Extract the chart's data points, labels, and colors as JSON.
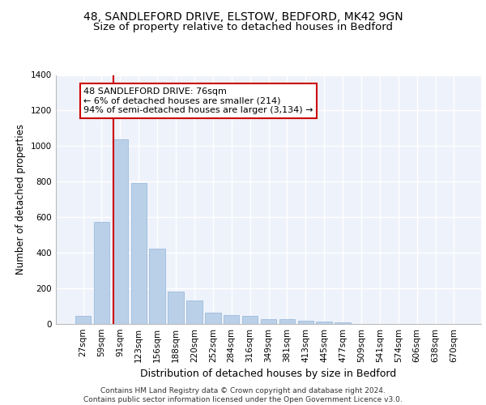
{
  "title1": "48, SANDLEFORD DRIVE, ELSTOW, BEDFORD, MK42 9GN",
  "title2": "Size of property relative to detached houses in Bedford",
  "xlabel": "Distribution of detached houses by size in Bedford",
  "ylabel": "Number of detached properties",
  "categories": [
    "27sqm",
    "59sqm",
    "91sqm",
    "123sqm",
    "156sqm",
    "188sqm",
    "220sqm",
    "252sqm",
    "284sqm",
    "316sqm",
    "349sqm",
    "381sqm",
    "413sqm",
    "445sqm",
    "477sqm",
    "509sqm",
    "541sqm",
    "574sqm",
    "606sqm",
    "638sqm",
    "670sqm"
  ],
  "values": [
    45,
    575,
    1040,
    790,
    425,
    180,
    130,
    65,
    48,
    45,
    28,
    28,
    20,
    12,
    10,
    0,
    0,
    0,
    0,
    0,
    0
  ],
  "bar_color": "#bad0e8",
  "bar_edge_color": "#90b4d8",
  "red_line_x": 1.62,
  "annotation_text": "48 SANDLEFORD DRIVE: 76sqm\n← 6% of detached houses are smaller (214)\n94% of semi-detached houses are larger (3,134) →",
  "annotation_box_color": "#ffffff",
  "annotation_edge_color": "#cc0000",
  "ylim": [
    0,
    1400
  ],
  "yticks": [
    0,
    200,
    400,
    600,
    800,
    1000,
    1200,
    1400
  ],
  "background_color": "#eef2fb",
  "grid_color": "#ffffff",
  "footer_text": "Contains HM Land Registry data © Crown copyright and database right 2024.\nContains public sector information licensed under the Open Government Licence v3.0.",
  "title1_fontsize": 10,
  "title2_fontsize": 9.5,
  "xlabel_fontsize": 9,
  "ylabel_fontsize": 8.5,
  "tick_fontsize": 7.5,
  "annotation_fontsize": 8,
  "footer_fontsize": 6.5
}
